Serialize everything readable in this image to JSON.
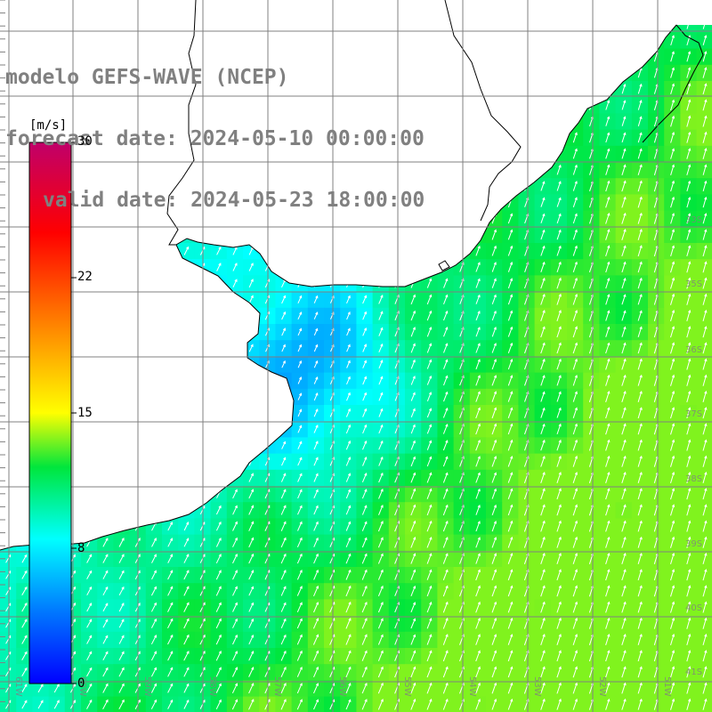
{
  "header": {
    "model": "modelo GEFS-WAVE (NCEP)",
    "forecast": "forecast date: 2024-05-10 00:00:00",
    "valid": "valid date: 2024-05-23 18:00:00"
  },
  "legend": {
    "unit": "[m/s]",
    "ticks": [
      "30",
      "22",
      "15",
      "8",
      "0"
    ],
    "colors": [
      "#0000ff",
      "#0088ff",
      "#00ffff",
      "#00ff00",
      "#ffff00",
      "#ff8000",
      "#ff0000",
      "#c0006a"
    ]
  },
  "map": {
    "lon_labels": [
      "61W",
      "60W",
      "59W",
      "58W",
      "57W",
      "56W",
      "55W",
      "54W",
      "53W",
      "52W",
      "51W"
    ],
    "lat_labels": [
      "33S",
      "35S",
      "36S",
      "37S",
      "38S",
      "39S",
      "40S",
      "41S"
    ],
    "colors": {
      "land": "#ffffff",
      "grid": "#808080",
      "coast": "#000000",
      "arrow": "#ffffff"
    }
  }
}
